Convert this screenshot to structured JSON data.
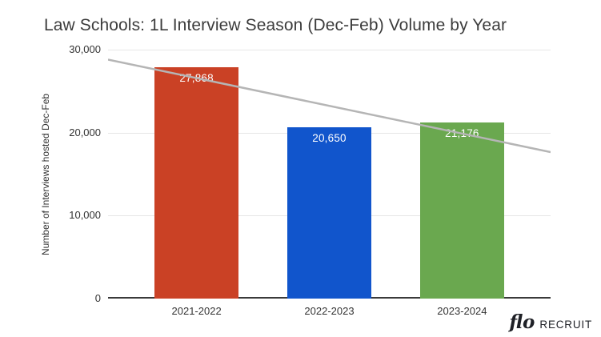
{
  "chart_data": {
    "type": "bar",
    "title": "Law Schools: 1L Interview Season (Dec-Feb) Volume by Year",
    "categories": [
      "2021-2022",
      "2022-2023",
      "2023-2024"
    ],
    "values": [
      27868,
      20650,
      21176
    ],
    "value_labels": [
      "27,868",
      "20,650",
      "21,176"
    ],
    "bar_colors": [
      "#ca4125",
      "#1155cc",
      "#6aa84f"
    ],
    "xlabel": "",
    "ylabel": "Number of Interviews hosted Dec-Feb",
    "ylim": [
      0,
      30000
    ],
    "yticks": [
      {
        "value": 0,
        "label": "0"
      },
      {
        "value": 10000,
        "label": "10,000"
      },
      {
        "value": 20000,
        "label": "20,000"
      },
      {
        "value": 30000,
        "label": "30,000"
      }
    ],
    "grid": true,
    "legend": "none",
    "trendline": {
      "color": "#b5b5b5",
      "points": [
        {
          "x_frac": 0,
          "value": 28800
        },
        {
          "x_frac": 1,
          "value": 17650
        }
      ]
    }
  },
  "branding": {
    "logo_script": "flo",
    "logo_text": "RECRUIT"
  },
  "colors": {
    "title_text": "#3c3c3c",
    "axis_text": "#333333",
    "gridline": "#e6e6e6",
    "baseline": "#3a3a3a",
    "bar_label_text": "#ffffff",
    "trendline": "#b5b5b5",
    "logo_text": "#1e2026"
  }
}
